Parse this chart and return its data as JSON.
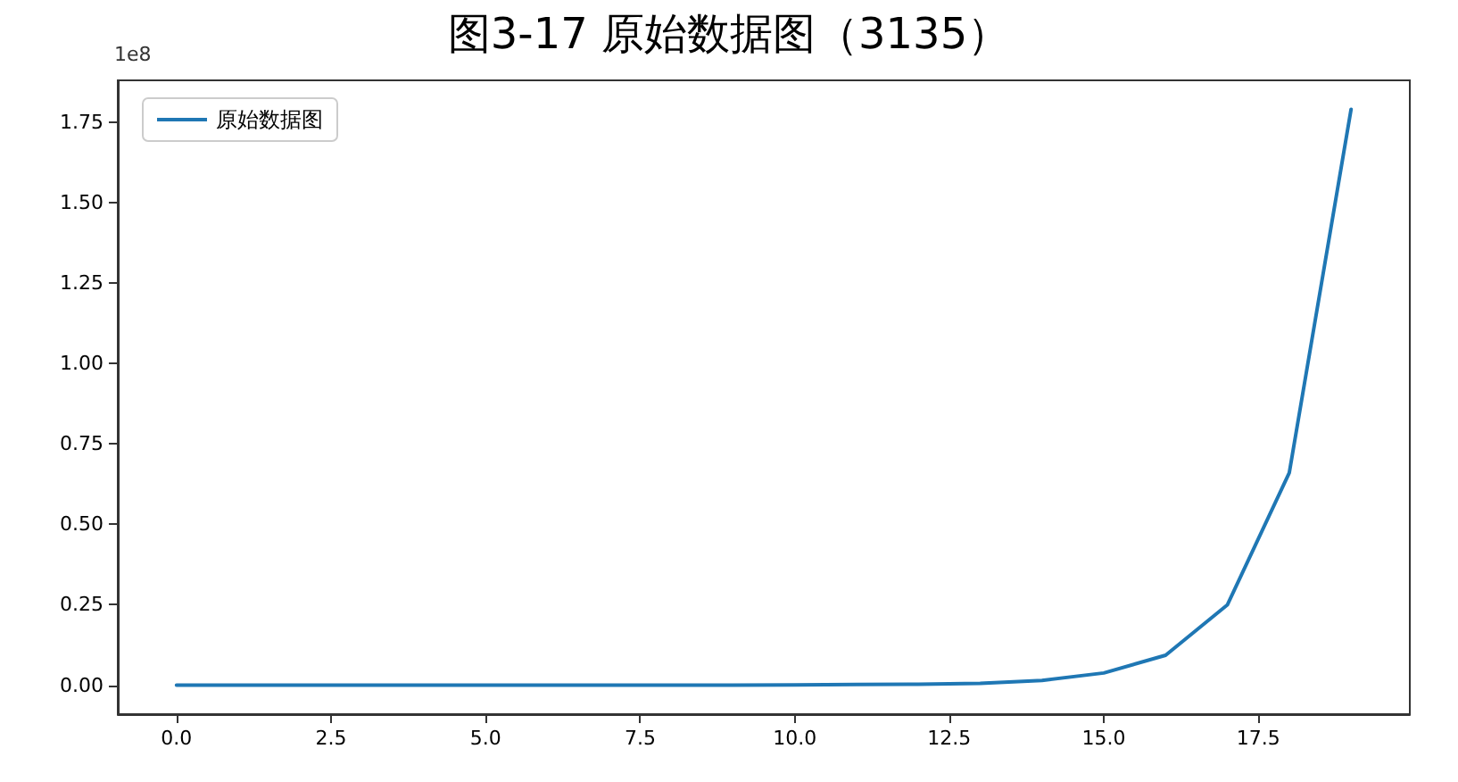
{
  "chart_data": {
    "type": "line",
    "title": "图3-17 原始数据图（3135）",
    "annotations": [
      "1e8"
    ],
    "x": [
      0,
      1,
      2,
      3,
      4,
      5,
      6,
      7,
      8,
      9,
      10,
      11,
      12,
      13,
      14,
      15,
      16,
      17,
      18,
      19
    ],
    "series": [
      {
        "name": "原始数据图",
        "color": "#1f77b4",
        "values": [
          0,
          0,
          0,
          0,
          0,
          0,
          0,
          0,
          0,
          0,
          0.001,
          0.002,
          0.003,
          0.006,
          0.015,
          0.038,
          0.093,
          0.25,
          0.66,
          1.79
        ]
      }
    ],
    "xlim": [
      -0.95,
      19.95
    ],
    "xticks": [
      {
        "value": 0,
        "label": "0.0"
      },
      {
        "value": 2.5,
        "label": "2.5"
      },
      {
        "value": 5,
        "label": "5.0"
      },
      {
        "value": 7.5,
        "label": "7.5"
      },
      {
        "value": 10,
        "label": "10.0"
      },
      {
        "value": 12.5,
        "label": "12.5"
      },
      {
        "value": 15,
        "label": "15.0"
      },
      {
        "value": 17.5,
        "label": "17.5"
      }
    ],
    "ylim": [
      -0.09,
      1.88
    ],
    "yticks": [
      {
        "value": 0,
        "label": "0.00"
      },
      {
        "value": 0.25,
        "label": "0.25"
      },
      {
        "value": 0.5,
        "label": "0.50"
      },
      {
        "value": 0.75,
        "label": "0.75"
      },
      {
        "value": 1,
        "label": "1.00"
      },
      {
        "value": 1.25,
        "label": "1.25"
      },
      {
        "value": 1.5,
        "label": "1.50"
      },
      {
        "value": 1.75,
        "label": "1.75"
      }
    ],
    "grid": false,
    "legend": "top left",
    "marker": "none",
    "line_style": "solid"
  }
}
